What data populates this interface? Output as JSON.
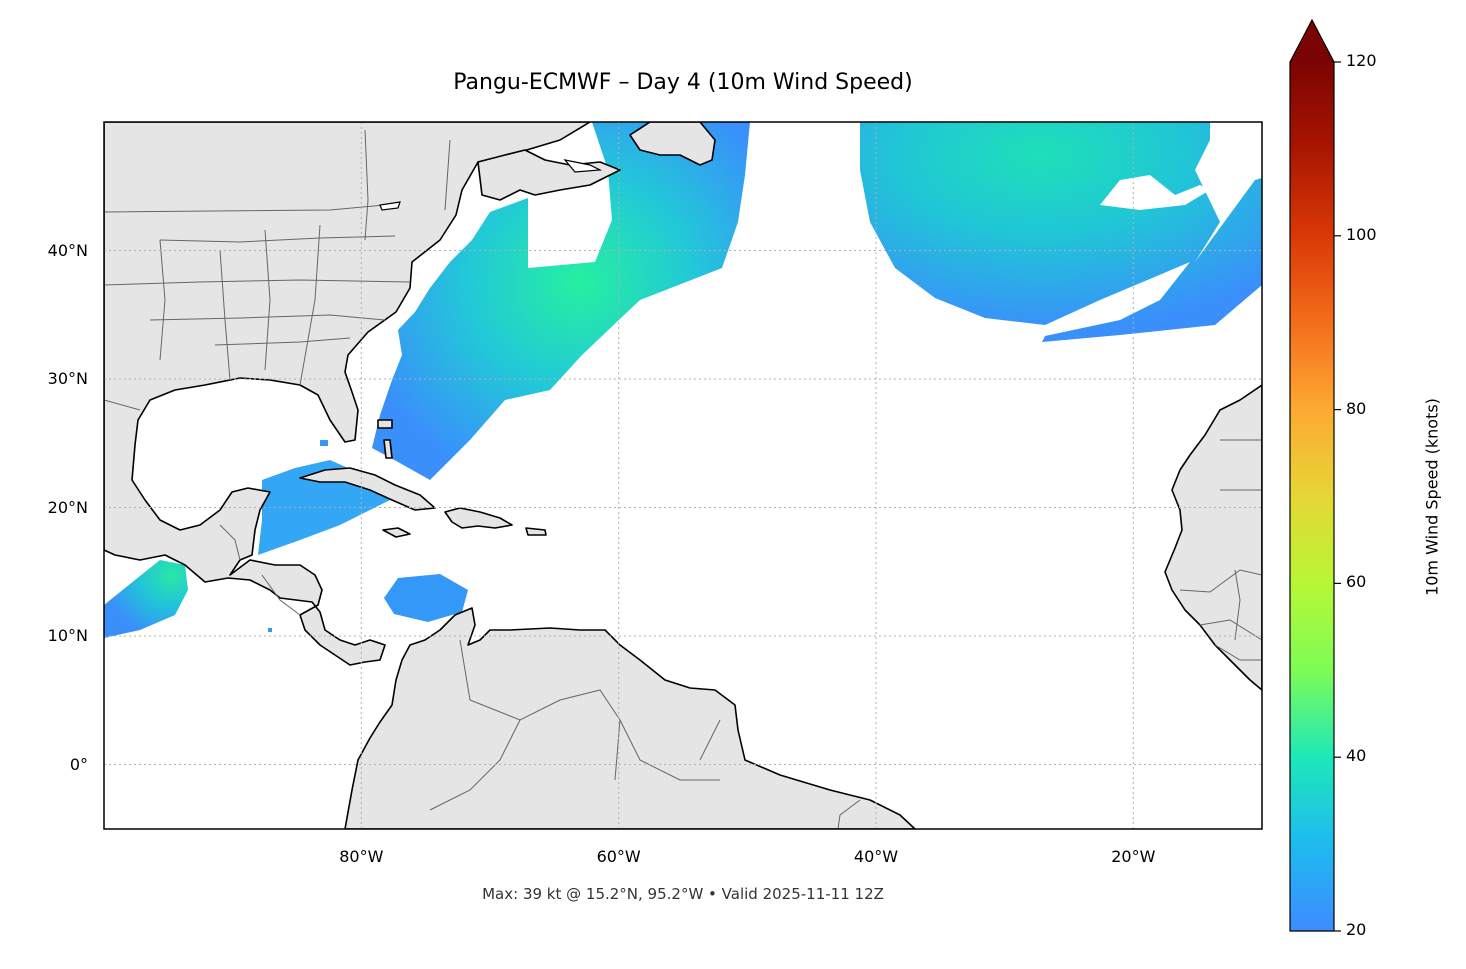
{
  "title": "Pangu-ECMWF – Day 4 (10m Wind Speed)",
  "footer": "Max: 39 kt @ 15.2°N, 95.2°W • Valid 2025-11-11 12Z",
  "map": {
    "extent": {
      "lon": [
        -100,
        -10
      ],
      "lat": [
        -5,
        50
      ]
    },
    "lat_ticks": [
      {
        "value": 40,
        "label": "40°N"
      },
      {
        "value": 30,
        "label": "30°N"
      },
      {
        "value": 20,
        "label": "20°N"
      },
      {
        "value": 10,
        "label": "10°N"
      },
      {
        "value": 0,
        "label": "0°"
      }
    ],
    "lon_ticks": [
      {
        "value": -80,
        "label": "80°W"
      },
      {
        "value": -60,
        "label": "60°W"
      },
      {
        "value": -40,
        "label": "40°W"
      },
      {
        "value": -20,
        "label": "20°W"
      }
    ],
    "gridlines": true,
    "land_color": "#e5e5e5",
    "coast_color": "#000000",
    "border_color": "#666666"
  },
  "colorbar": {
    "label": "10m Wind Speed (knots)",
    "min": 20,
    "max": 120,
    "extend": "max",
    "ticks": [
      {
        "value": 20,
        "label": "20"
      },
      {
        "value": 40,
        "label": "40"
      },
      {
        "value": 60,
        "label": "60"
      },
      {
        "value": 80,
        "label": "80"
      },
      {
        "value": 100,
        "label": "100"
      },
      {
        "value": 120,
        "label": "120"
      }
    ],
    "colormap": "turbo",
    "over_color": "#7a0403"
  },
  "max_wind": {
    "value": 39,
    "units": "kt",
    "lat": 15.2,
    "lon": -95.2
  },
  "wind_regions": [
    {
      "name": "western-atlantic-us-coast",
      "peak_kt": 35
    },
    {
      "name": "northeast-atlantic-cyclone",
      "peak_kt": 33
    },
    {
      "name": "gulf-of-honduras",
      "peak_kt": 26
    },
    {
      "name": "caribbean-colombia",
      "peak_kt": 25
    },
    {
      "name": "eastern-pacific-tehuantepec",
      "peak_kt": 39
    }
  ]
}
